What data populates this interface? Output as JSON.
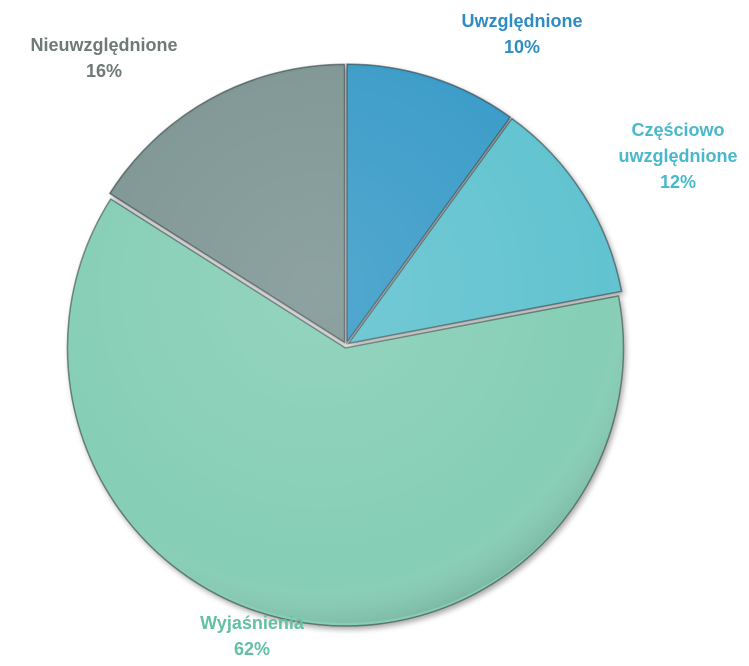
{
  "chart_data": {
    "type": "pie",
    "title": "",
    "slices": [
      {
        "name_lines": [
          "Uwzględnione"
        ],
        "value": 10,
        "value_label": "10%",
        "color": "#3a9cc8",
        "label_color": "#2e8cc4"
      },
      {
        "name_lines": [
          "Częściowo",
          "uwzględnione"
        ],
        "value": 12,
        "value_label": "12%",
        "color": "#62c3d0",
        "label_color": "#4ab8cc"
      },
      {
        "name_lines": [
          "Wyjaśnienia"
        ],
        "value": 62,
        "value_label": "62%",
        "color": "#86ceb6",
        "label_color": "#62c0a4"
      },
      {
        "name_lines": [
          "Nieuwzględnione"
        ],
        "value": 16,
        "value_label": "16%",
        "color": "#7e9694",
        "label_color": "#6e7a78"
      }
    ],
    "start_angle": "12 o'clock",
    "direction": "clockwise",
    "legend": "none",
    "data_labels": "outside, category name and percentage"
  }
}
